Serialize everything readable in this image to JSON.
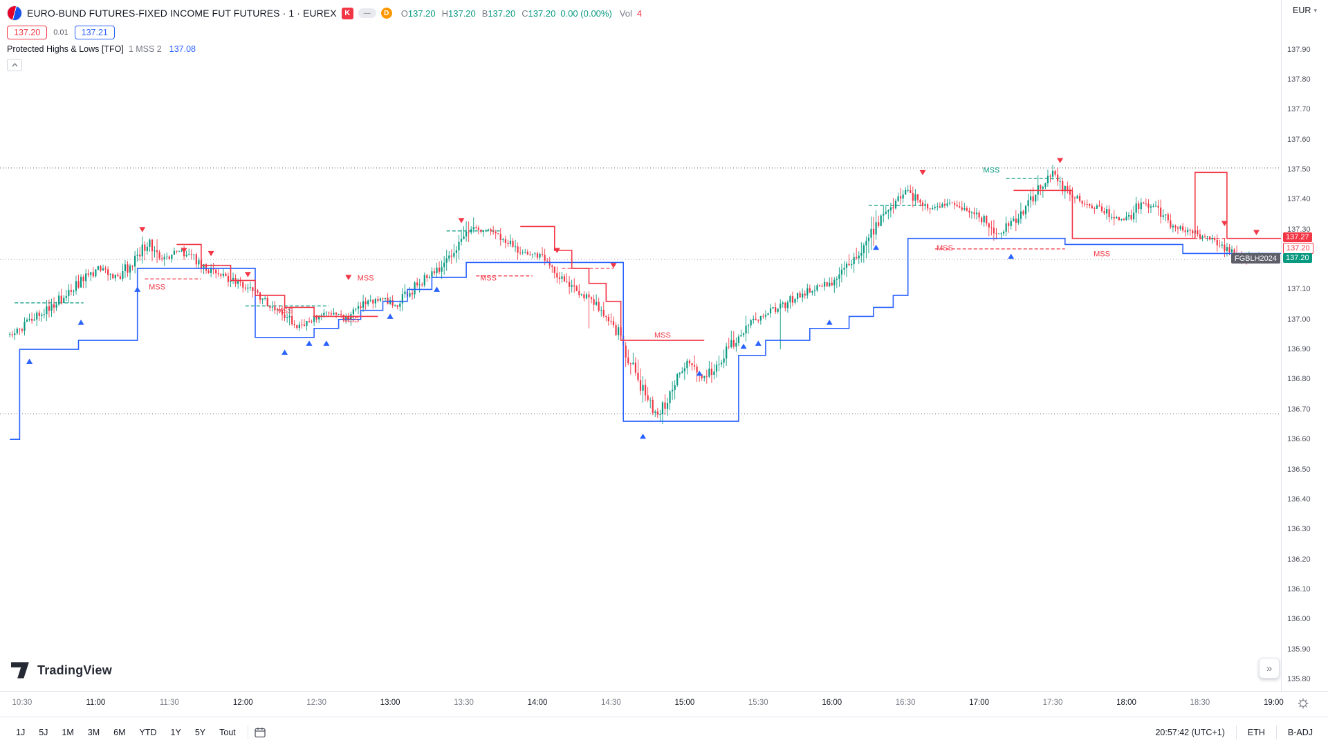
{
  "header": {
    "title": "EURO-BUND FUTURES-FIXED INCOME FUT FUTURES · 1 · EUREX",
    "exchange_badge": "K",
    "lazy_badge": "—",
    "delay_badge": "D",
    "ohlc": [
      {
        "label": "O",
        "value": "137.20"
      },
      {
        "label": "H",
        "value": "137.20"
      },
      {
        "label": "B",
        "value": "137.20"
      },
      {
        "label": "C",
        "value": "137.20"
      }
    ],
    "change": "0.00 (0.00%)",
    "vol_label": "Vol",
    "vol_value": "4",
    "sell": "137.20",
    "spread": "0.01",
    "buy": "137.21",
    "indicator": {
      "name": "Protected Highs & Lows [TFO]",
      "params": "1 MSS 2",
      "value": "137.08"
    }
  },
  "axis": {
    "currency": "EUR",
    "price_labels": [
      "137.90",
      "137.80",
      "137.70",
      "137.60",
      "137.50",
      "137.40",
      "137.30",
      "137.20",
      "137.10",
      "137.00",
      "136.90",
      "136.80",
      "136.70",
      "136.60",
      "136.50",
      "136.40",
      "136.30",
      "136.20",
      "136.10",
      "136.00",
      "135.90",
      "135.80"
    ],
    "time_labels": [
      "10:30",
      "11:00",
      "11:30",
      "12:00",
      "12:30",
      "13:00",
      "13:30",
      "14:00",
      "14:30",
      "15:00",
      "15:30",
      "16:00",
      "16:30",
      "17:00",
      "17:30",
      "18:00",
      "18:30",
      "19:00"
    ],
    "tags": [
      {
        "text": "137.27",
        "price": 137.27,
        "style": "filled",
        "color": "#f23645"
      },
      {
        "text": "137.20",
        "price": 137.235,
        "style": "outline",
        "color": "#f23645"
      },
      {
        "text": "137.20",
        "price": 137.2,
        "style": "filled",
        "color": "#089981",
        "contract": "FGBLH2024"
      }
    ]
  },
  "toolbar": {
    "ranges": [
      "1J",
      "5J",
      "1M",
      "3M",
      "6M",
      "YTD",
      "1Y",
      "5Y",
      "Tout"
    ],
    "time": "20:57:42 (UTC+1)",
    "session": "ETH",
    "adjustment": "B-ADJ"
  },
  "watermark": "TradingView",
  "icons": {
    "caret_down": "▾",
    "scroll_right": "»"
  },
  "chart_data": {
    "type": "candlestick",
    "contract": "FGBLH2024",
    "interval": "1 minute",
    "minutes_origin": "10:25",
    "t_min": -4,
    "t_max": 518,
    "price_axis_range": [
      135.8,
      137.9
    ],
    "up_color": "#089981",
    "down_color": "#f23645",
    "anchors": [
      [
        0,
        136.95
      ],
      [
        8,
        136.99
      ],
      [
        18,
        137.05
      ],
      [
        28,
        137.12
      ],
      [
        36,
        137.17
      ],
      [
        44,
        137.14
      ],
      [
        52,
        137.21
      ],
      [
        57,
        137.26
      ],
      [
        61,
        137.19
      ],
      [
        67,
        137.23
      ],
      [
        74,
        137.21
      ],
      [
        82,
        137.16
      ],
      [
        90,
        137.13
      ],
      [
        97,
        137.1
      ],
      [
        104,
        137.06
      ],
      [
        111,
        137.02
      ],
      [
        117,
        136.97
      ],
      [
        123,
        137.0
      ],
      [
        130,
        137.02
      ],
      [
        137,
        137.0
      ],
      [
        144,
        137.05
      ],
      [
        151,
        137.07
      ],
      [
        158,
        137.05
      ],
      [
        165,
        137.11
      ],
      [
        171,
        137.15
      ],
      [
        178,
        137.19
      ],
      [
        184,
        137.26
      ],
      [
        189,
        137.31
      ],
      [
        196,
        137.29
      ],
      [
        203,
        137.26
      ],
      [
        209,
        137.22
      ],
      [
        217,
        137.21
      ],
      [
        224,
        137.14
      ],
      [
        231,
        137.09
      ],
      [
        239,
        137.05
      ],
      [
        245,
        137.0
      ],
      [
        249,
        136.94
      ],
      [
        253,
        136.85
      ],
      [
        257,
        136.77
      ],
      [
        262,
        136.71
      ],
      [
        265,
        136.68
      ],
      [
        269,
        136.76
      ],
      [
        273,
        136.81
      ],
      [
        277,
        136.86
      ],
      [
        282,
        136.8
      ],
      [
        287,
        136.84
      ],
      [
        291,
        136.88
      ],
      [
        296,
        136.93
      ],
      [
        302,
        136.99
      ],
      [
        307,
        137.02
      ],
      [
        314,
        137.04
      ],
      [
        321,
        137.08
      ],
      [
        327,
        137.1
      ],
      [
        334,
        137.12
      ],
      [
        341,
        137.17
      ],
      [
        347,
        137.23
      ],
      [
        354,
        137.33
      ],
      [
        361,
        137.4
      ],
      [
        365,
        137.43
      ],
      [
        371,
        137.39
      ],
      [
        377,
        137.37
      ],
      [
        384,
        137.39
      ],
      [
        391,
        137.36
      ],
      [
        397,
        137.33
      ],
      [
        403,
        137.28
      ],
      [
        409,
        137.33
      ],
      [
        416,
        137.39
      ],
      [
        421,
        137.45
      ],
      [
        425,
        137.49
      ],
      [
        429,
        137.44
      ],
      [
        435,
        137.4
      ],
      [
        441,
        137.38
      ],
      [
        447,
        137.36
      ],
      [
        452,
        137.33
      ],
      [
        457,
        137.35
      ],
      [
        461,
        137.39
      ],
      [
        467,
        137.37
      ],
      [
        473,
        137.32
      ],
      [
        479,
        137.3
      ],
      [
        485,
        137.28
      ],
      [
        491,
        137.26
      ],
      [
        497,
        137.23
      ],
      [
        503,
        137.19
      ],
      [
        507,
        137.21
      ],
      [
        515,
        137.21
      ]
    ],
    "wick_events": [
      {
        "t": 189,
        "high": 137.34
      },
      {
        "t": 236,
        "low": 136.97
      },
      {
        "t": 265,
        "low": 136.66
      },
      {
        "t": 314,
        "low": 136.9
      },
      {
        "t": 425,
        "high": 137.515
      }
    ],
    "protected_low_line": {
      "color": "#2962ff",
      "steps": [
        [
          0,
          136.6
        ],
        [
          4,
          136.9
        ],
        [
          28,
          136.93
        ],
        [
          52,
          137.17
        ],
        [
          100,
          136.94
        ],
        [
          124,
          136.97
        ],
        [
          134,
          137.0
        ],
        [
          143,
          137.03
        ],
        [
          152,
          137.06
        ],
        [
          162,
          137.1
        ],
        [
          172,
          137.14
        ],
        [
          186,
          137.19
        ],
        [
          250,
          136.66
        ],
        [
          297,
          136.88
        ],
        [
          308,
          136.93
        ],
        [
          326,
          136.97
        ],
        [
          342,
          137.01
        ],
        [
          352,
          137.04
        ],
        [
          360,
          137.08
        ],
        [
          366,
          137.27
        ],
        [
          430,
          137.25
        ],
        [
          478,
          137.22
        ],
        [
          518,
          137.22
        ]
      ]
    },
    "protected_high_line": {
      "color": "#f23645",
      "segments": [
        [
          [
            68,
            137.25
          ],
          [
            78,
            137.18
          ],
          [
            90,
            137.13
          ],
          [
            100,
            137.08
          ],
          [
            112,
            137.04
          ],
          [
            124,
            137.01
          ],
          [
            150,
            137.01
          ]
        ],
        [
          [
            208,
            137.31
          ],
          [
            222,
            137.23
          ],
          [
            229,
            137.17
          ],
          [
            236,
            137.12
          ],
          [
            243,
            137.06
          ],
          [
            249,
            136.93
          ],
          [
            283,
            136.93
          ]
        ],
        [
          [
            409,
            137.43
          ],
          [
            433,
            137.27
          ],
          [
            483,
            137.49
          ],
          [
            496,
            137.27
          ],
          [
            518,
            137.27
          ]
        ]
      ]
    },
    "dotted_levels": [
      {
        "p": 137.505,
        "color": "#555861"
      },
      {
        "p": 137.2,
        "color": "#9598a1"
      },
      {
        "p": 136.685,
        "color": "#555861"
      }
    ],
    "dashed_segments": [
      {
        "t1": 2,
        "t2": 30,
        "p": 137.055,
        "color": "#089981"
      },
      {
        "t1": 55,
        "t2": 78,
        "p": 137.135,
        "color": "#f23645"
      },
      {
        "t1": 96,
        "t2": 130,
        "p": 137.045,
        "color": "#089981"
      },
      {
        "t1": 178,
        "t2": 200,
        "p": 137.295,
        "color": "#089981"
      },
      {
        "t1": 190,
        "t2": 213,
        "p": 137.145,
        "color": "#f23645"
      },
      {
        "t1": 225,
        "t2": 246,
        "p": 137.17,
        "color": "#f23645"
      },
      {
        "t1": 350,
        "t2": 372,
        "p": 137.38,
        "color": "#089981"
      },
      {
        "t1": 406,
        "t2": 429,
        "p": 137.47,
        "color": "#089981"
      },
      {
        "t1": 377,
        "t2": 430,
        "p": 137.235,
        "color": "#f23645"
      },
      {
        "t1": 433,
        "t2": 505,
        "p": 137.27,
        "color": "#f23645"
      }
    ],
    "mss_text": "MSS",
    "mss_labels": [
      {
        "t": 60,
        "p": 137.1,
        "color": "#f23645"
      },
      {
        "t": 112,
        "p": 137.02,
        "color": "#f23645"
      },
      {
        "t": 139,
        "p": 136.99,
        "color": "#f23645"
      },
      {
        "t": 145,
        "p": 137.13,
        "color": "#f23645"
      },
      {
        "t": 195,
        "p": 137.13,
        "color": "#f23645"
      },
      {
        "t": 266,
        "p": 136.94,
        "color": "#f23645"
      },
      {
        "t": 381,
        "p": 137.23,
        "color": "#f23645"
      },
      {
        "t": 445,
        "p": 137.21,
        "color": "#f23645"
      },
      {
        "t": 400,
        "p": 137.49,
        "color": "#089981"
      }
    ],
    "markers_up": [
      [
        8,
        136.86
      ],
      [
        29,
        136.99
      ],
      [
        52,
        137.1
      ],
      [
        112,
        136.89
      ],
      [
        122,
        136.92
      ],
      [
        129,
        136.92
      ],
      [
        155,
        137.01
      ],
      [
        174,
        137.1
      ],
      [
        258,
        136.61
      ],
      [
        281,
        136.82
      ],
      [
        299,
        136.91
      ],
      [
        305,
        136.92
      ],
      [
        334,
        136.99
      ],
      [
        353,
        137.24
      ],
      [
        408,
        137.21
      ]
    ],
    "markers_down": [
      [
        54,
        137.3
      ],
      [
        71,
        137.23
      ],
      [
        82,
        137.22
      ],
      [
        97,
        137.15
      ],
      [
        138,
        137.14
      ],
      [
        184,
        137.33
      ],
      [
        223,
        137.23
      ],
      [
        246,
        137.18
      ],
      [
        372,
        137.49
      ],
      [
        428,
        137.53
      ],
      [
        495,
        137.32
      ],
      [
        508,
        137.29
      ]
    ]
  }
}
